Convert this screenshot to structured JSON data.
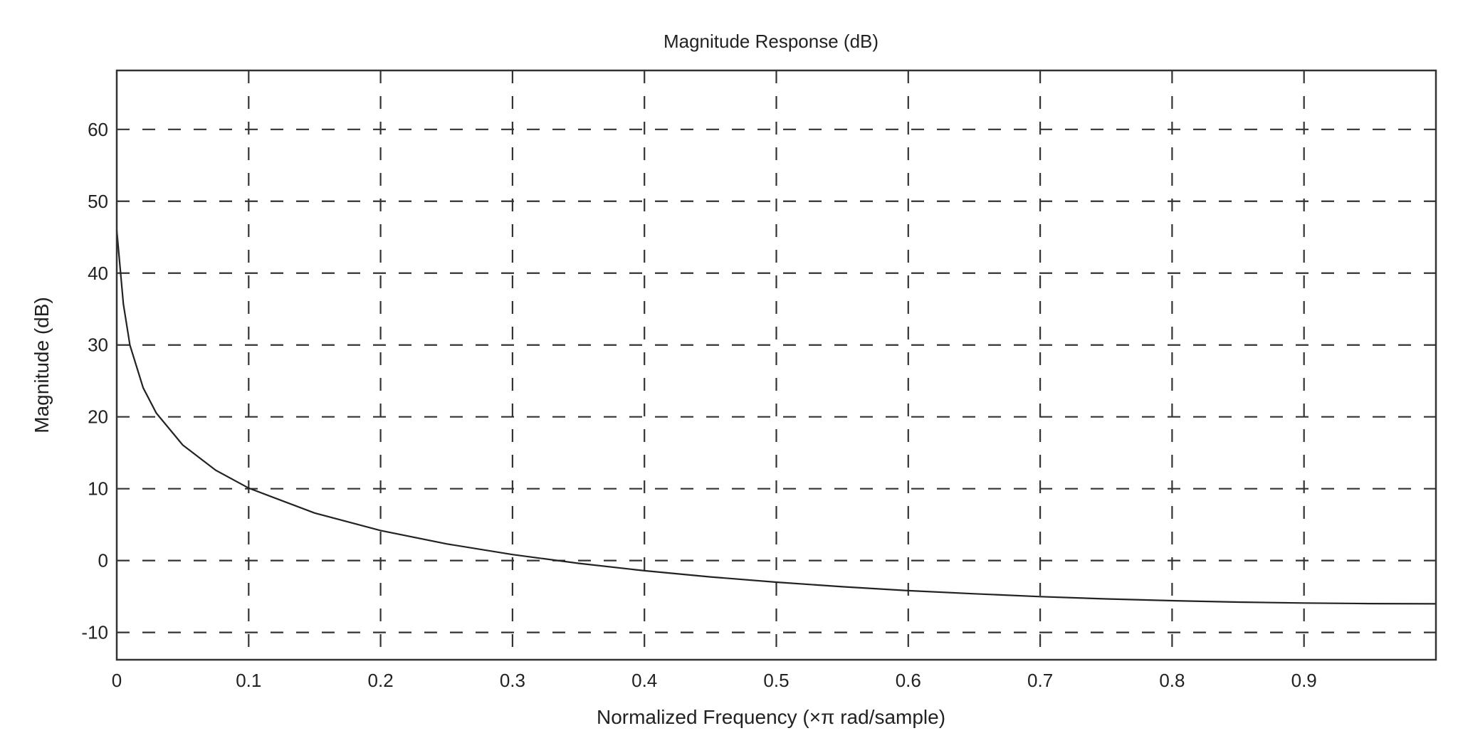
{
  "chart_data": {
    "type": "line",
    "title": "Magnitude Response (dB)",
    "xlabel": "Normalized Frequency (×π rad/sample)",
    "ylabel": "Magnitude (dB)",
    "xlim": [
      0,
      1
    ],
    "ylim": [
      -13.8,
      68.2
    ],
    "grid": true,
    "grid_style": "dashed",
    "xticks": [
      0,
      0.1,
      0.2,
      0.3,
      0.4,
      0.5,
      0.6,
      0.7,
      0.8,
      0.9
    ],
    "xtick_labels": [
      "0",
      "0.1",
      "0.2",
      "0.3",
      "0.4",
      "0.5",
      "0.6",
      "0.7",
      "0.8",
      "0.9"
    ],
    "yticks": [
      -10,
      0,
      10,
      20,
      30,
      40,
      50,
      60
    ],
    "ytick_labels": [
      "-10",
      "0",
      "10",
      "20",
      "30",
      "40",
      "50",
      "60"
    ],
    "series": [
      {
        "name": "Magnitude",
        "color": "#222222",
        "x": [
          0,
          0.002,
          0.005,
          0.01,
          0.02,
          0.03,
          0.05,
          0.075,
          0.1,
          0.15,
          0.2,
          0.25,
          0.3,
          0.35,
          0.4,
          0.45,
          0.5,
          0.55,
          0.6,
          0.65,
          0.7,
          0.75,
          0.8,
          0.85,
          0.9,
          0.95,
          1.0
        ],
        "y": [
          46.0,
          41.9,
          35.7,
          29.97,
          24.04,
          20.52,
          16.09,
          12.57,
          10.09,
          6.62,
          4.18,
          2.32,
          0.84,
          -0.38,
          -1.41,
          -2.27,
          -3.01,
          -3.64,
          -4.18,
          -4.62,
          -5.02,
          -5.33,
          -5.58,
          -5.78,
          -5.91,
          -5.99,
          -6.02
        ]
      }
    ]
  }
}
